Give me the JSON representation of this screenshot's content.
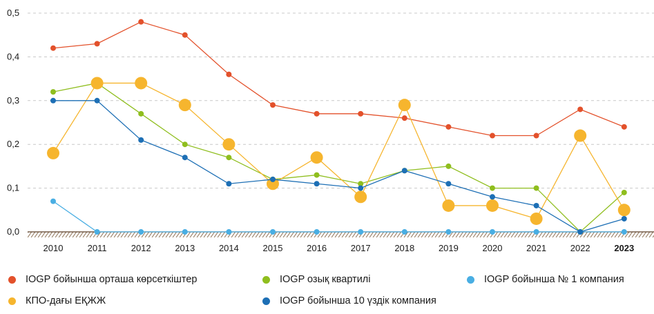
{
  "chart_data": {
    "type": "line",
    "categories": [
      "2010",
      "2011",
      "2012",
      "2013",
      "2014",
      "2015",
      "2016",
      "2017",
      "2018",
      "2019",
      "2020",
      "2021",
      "2022",
      "2023"
    ],
    "highlight_category": "2023",
    "y_ticks": [
      "0,0",
      "0,1",
      "0,2",
      "0,3",
      "0,4",
      "0,5"
    ],
    "ylim": [
      0,
      0.5
    ],
    "grid": "horizontal dashed",
    "legend_position": "bottom",
    "series": [
      {
        "name": "IOGP бойынша орташа көрсеткіштер",
        "color": "#e3512b",
        "marker": "small",
        "values": [
          0.42,
          0.43,
          0.48,
          0.45,
          0.36,
          0.29,
          0.27,
          0.27,
          0.26,
          0.24,
          0.22,
          0.22,
          0.28,
          0.24
        ]
      },
      {
        "name": "IOGP озық квартилі",
        "color": "#8fbe1e",
        "marker": "small",
        "values": [
          0.32,
          0.34,
          0.27,
          0.2,
          0.17,
          0.12,
          0.13,
          0.11,
          0.14,
          0.15,
          0.1,
          0.1,
          0.0,
          0.09
        ]
      },
      {
        "name": "IOGP бойынша № 1 компания",
        "color": "#49aee3",
        "marker": "small",
        "values": [
          0.07,
          0.0,
          0.0,
          0.0,
          0.0,
          0.0,
          0.0,
          0.0,
          0.0,
          0.0,
          0.0,
          0.0,
          0.0,
          0.0
        ]
      },
      {
        "name": "КПО-дағы ЕҚЖЖ",
        "color": "#f6b52e",
        "marker": "large",
        "values": [
          0.18,
          0.34,
          0.34,
          0.29,
          0.2,
          0.11,
          0.17,
          0.08,
          0.29,
          0.06,
          0.06,
          0.03,
          0.22,
          0.05
        ]
      },
      {
        "name": "IOGP бойынша 10 үздік компания",
        "color": "#1d6fb5",
        "marker": "small",
        "values": [
          0.3,
          0.3,
          0.21,
          0.17,
          0.11,
          0.12,
          0.11,
          0.1,
          0.14,
          0.11,
          0.08,
          0.06,
          0.0,
          0.03
        ]
      }
    ]
  },
  "legend": {
    "item1": "IOGP бойынша орташа көрсеткіштер",
    "item2": "IOGP озық квартилі",
    "item3": "IOGP бойынша № 1 компания",
    "item4": "КПО-дағы ЕҚЖЖ",
    "item5": "IOGP бойынша 10 үздік компания"
  }
}
